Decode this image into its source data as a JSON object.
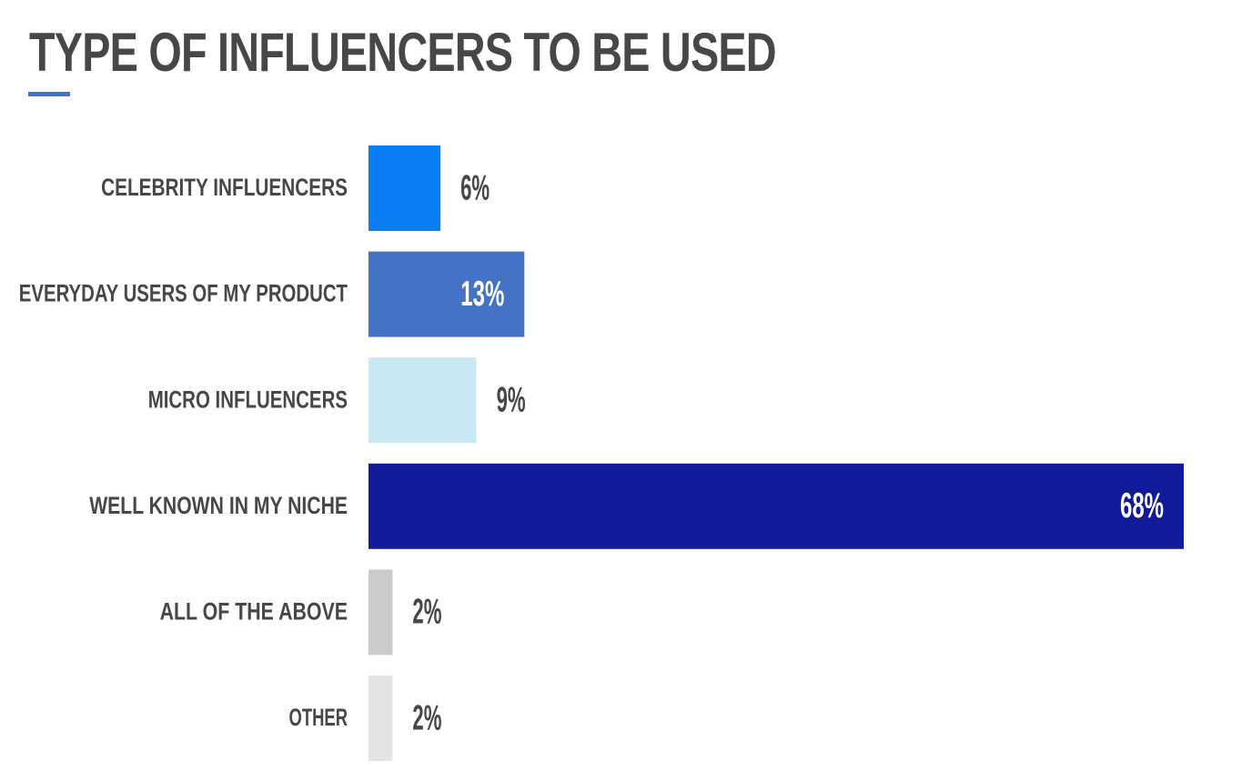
{
  "chart_data": {
    "type": "bar",
    "orientation": "horizontal",
    "title": "TYPE OF INFLUENCERS TO BE USED",
    "categories": [
      "CELEBRITY INFLUENCERS",
      "EVERYDAY USERS OF MY PRODUCT",
      "MICRO INFLUENCERS",
      "WELL KNOWN IN MY NICHE",
      "ALL OF THE ABOVE",
      "OTHER"
    ],
    "values": [
      6,
      13,
      9,
      68,
      2,
      2
    ],
    "value_labels": [
      "6%",
      "13%",
      "9%",
      "68%",
      "2%",
      "2%"
    ],
    "unit": "%",
    "colors": [
      "#0a7ef2",
      "#4472c4",
      "#c8e8f2",
      "#111b9a",
      "#cbcbcb",
      "#e4e4e4"
    ],
    "label_colors": [
      "#474747",
      "#ffffff",
      "#474747",
      "#ffffff",
      "#474747",
      "#474747"
    ],
    "xlim": [
      0,
      68
    ],
    "grid": false,
    "legend": "none"
  }
}
